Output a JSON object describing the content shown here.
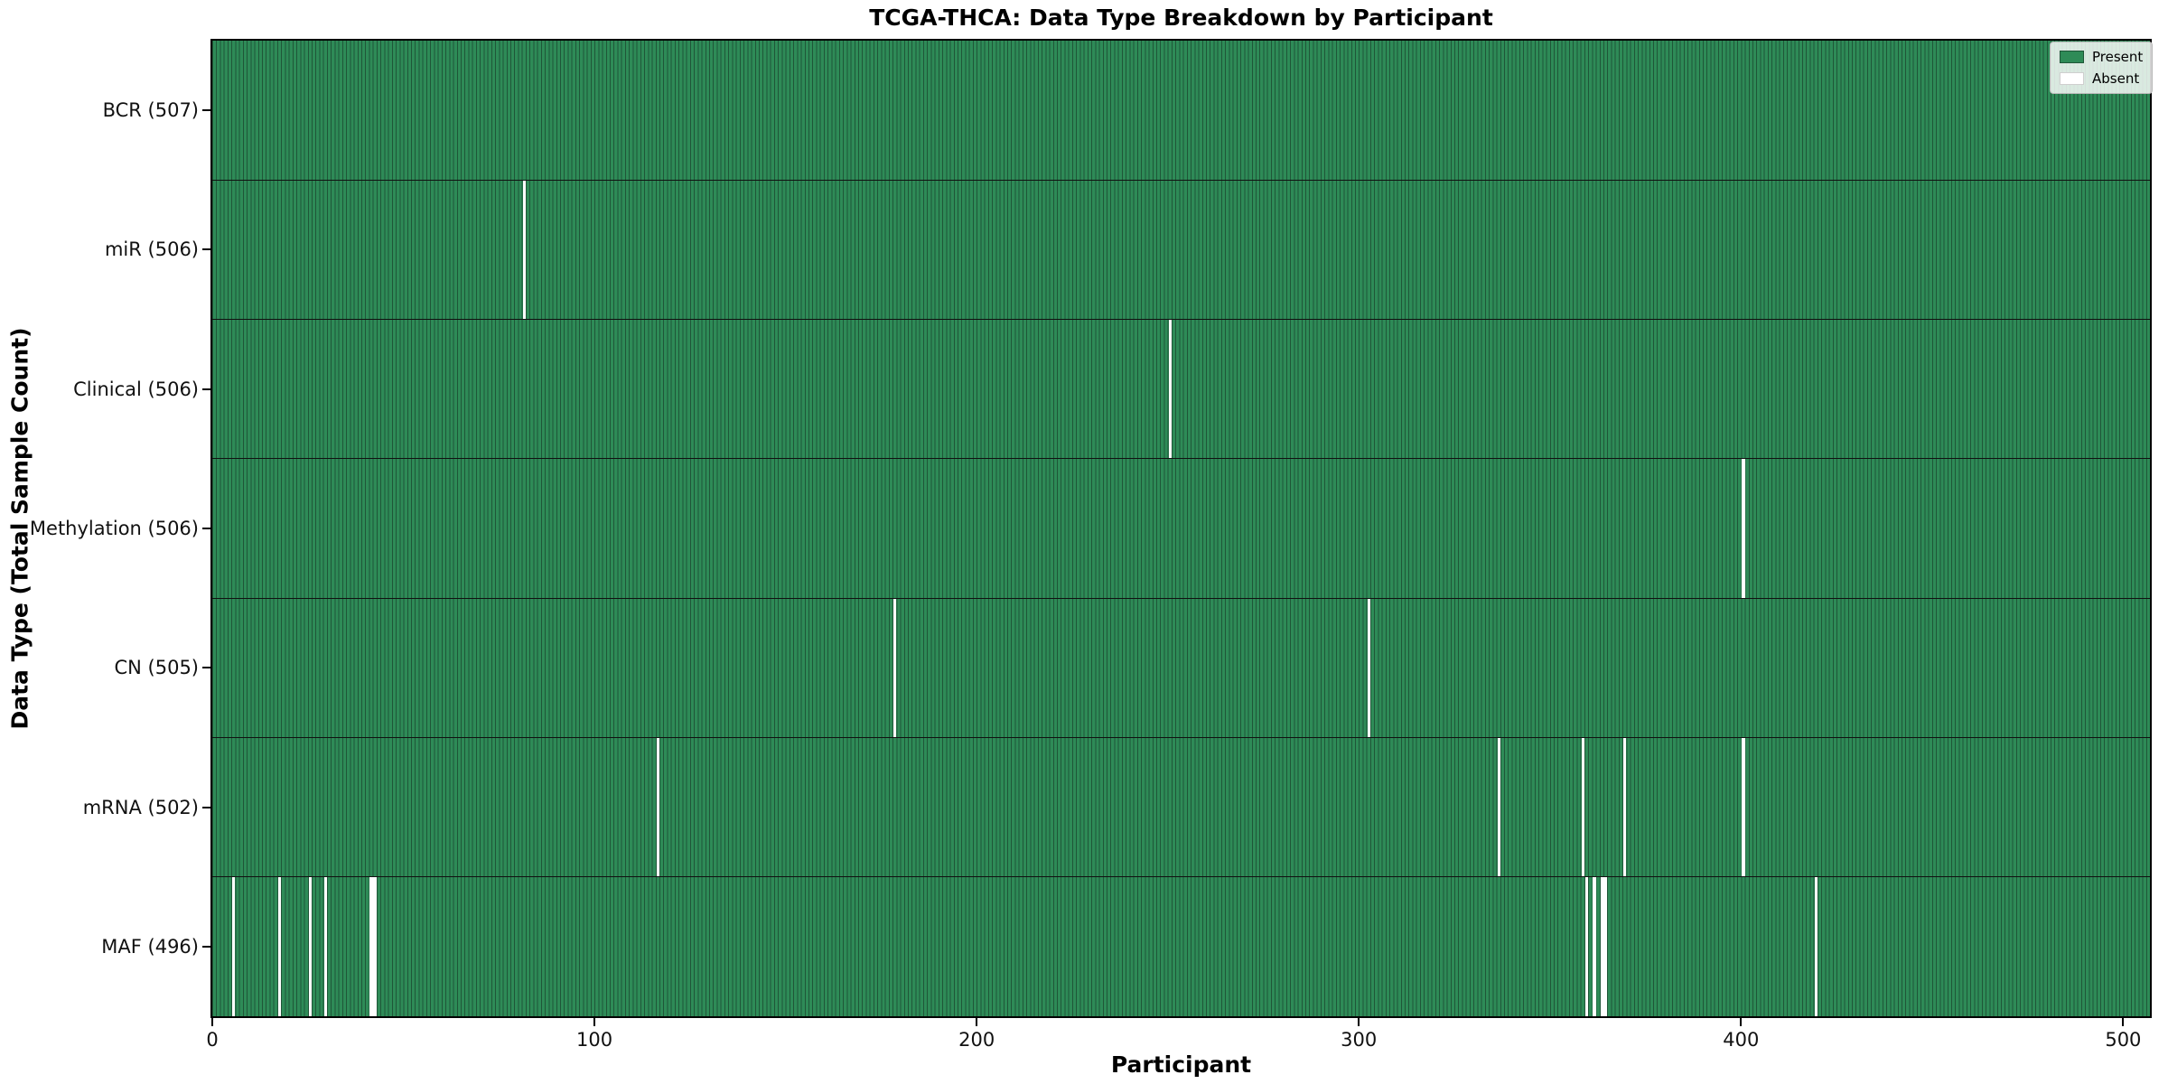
{
  "title": "TCGA-THCA: Data Type Breakdown by Participant",
  "axes": {
    "xlabel": "Participant",
    "ylabel": "Data Type (Total Sample Count)"
  },
  "legend": {
    "present_label": "Present",
    "absent_label": "Absent"
  },
  "colors": {
    "present": "#2e8b57",
    "present_edge": "#1f5638",
    "absent": "#ffffff",
    "row_divider": "#111111",
    "plot_border": "#000000"
  },
  "chart_data": {
    "type": "heatmap",
    "title": "TCGA-THCA: Data Type Breakdown by Participant",
    "xlabel": "Participant",
    "ylabel": "Data Type (Total Sample Count)",
    "legend": [
      "Present",
      "Absent"
    ],
    "legend_position": "upper right",
    "grid": false,
    "n_participants": 507,
    "xlim": [
      0,
      507
    ],
    "x_ticks": [
      0,
      100,
      200,
      300,
      400,
      500
    ],
    "rows": [
      {
        "data_type": "BCR",
        "label": "BCR (507)",
        "total_samples": 507,
        "absent_participants": []
      },
      {
        "data_type": "miR",
        "label": "miR (506)",
        "total_samples": 506,
        "absent_participants": [
          81
        ]
      },
      {
        "data_type": "Clinical",
        "label": "Clinical (506)",
        "total_samples": 506,
        "absent_participants": [
          250
        ]
      },
      {
        "data_type": "Methylation",
        "label": "Methylation (506)",
        "total_samples": 506,
        "absent_participants": [
          400
        ]
      },
      {
        "data_type": "CN",
        "label": "CN (505)",
        "total_samples": 505,
        "absent_participants": [
          178,
          302
        ]
      },
      {
        "data_type": "mRNA",
        "label": "mRNA (502)",
        "total_samples": 502,
        "absent_participants": [
          116,
          336,
          358,
          369,
          400
        ]
      },
      {
        "data_type": "MAF",
        "label": "MAF (496)",
        "total_samples": 496,
        "absent_participants": [
          5,
          17,
          25,
          29,
          41,
          42,
          359,
          361,
          363,
          364,
          419
        ]
      }
    ]
  }
}
